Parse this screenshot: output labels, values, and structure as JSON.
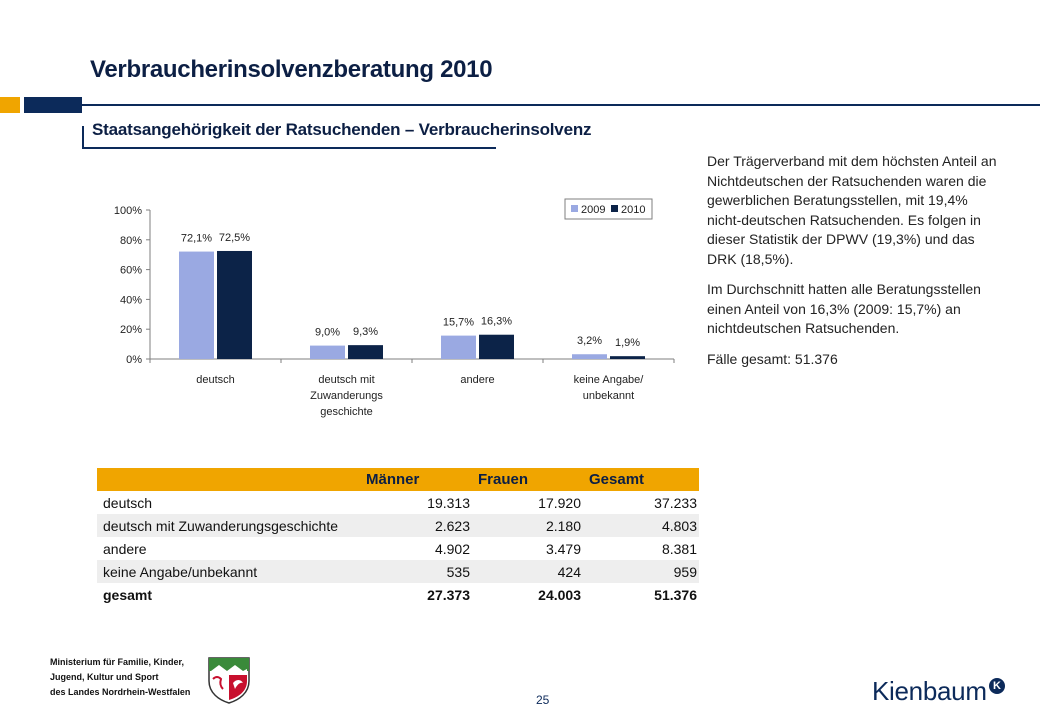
{
  "header": {
    "title": "Verbraucherinsolvenzberatung 2010",
    "subtitle": "Staatsangehörigkeit der Ratsuchenden – Verbraucherinsolvenz"
  },
  "colors": {
    "navy": "#0c2a5a",
    "orange": "#f0a500",
    "series_2009": "#9aa9e2",
    "series_2010": "#0c2348"
  },
  "chart_data": {
    "type": "bar",
    "categories": [
      "deutsch",
      "deutsch mit Zuwanderungs geschichte",
      "andere",
      "keine Angabe/ unbekannt"
    ],
    "category_lines": [
      [
        "deutsch"
      ],
      [
        "deutsch mit",
        "Zuwanderungs",
        "geschichte"
      ],
      [
        "andere"
      ],
      [
        "keine Angabe/",
        "unbekannt"
      ]
    ],
    "series": [
      {
        "name": "2009",
        "values": [
          72.1,
          9.0,
          15.7,
          3.2
        ],
        "labels": [
          "72,1%",
          "9,0%",
          "15,7%",
          "3,2%"
        ]
      },
      {
        "name": "2010",
        "values": [
          72.5,
          9.3,
          16.3,
          1.9
        ],
        "labels": [
          "72,5%",
          "9,3%",
          "16,3%",
          "1,9%"
        ]
      }
    ],
    "ylim": [
      0,
      100
    ],
    "yticks": [
      "0%",
      "20%",
      "40%",
      "60%",
      "80%",
      "100%"
    ],
    "legend": "top-right",
    "grid": false
  },
  "text": {
    "paragraph1": "Der Trägerverband mit dem höchsten Anteil an Nichtdeutschen der Ratsuchenden waren die gewerblichen Beratungsstellen, mit 19,4% nicht-deutschen Ratsuchenden. Es folgen in dieser Statistik der DPWV (19,3%) und das DRK (18,5%).",
    "paragraph2": "Im Durchschnitt hatten alle Beratungsstellen einen Anteil von 16,3% (2009: 15,7%) an nichtdeutschen Ratsuchenden.",
    "total_cases": "Fälle gesamt:  51.376"
  },
  "table": {
    "headers": [
      "",
      "Männer",
      "Frauen",
      "Gesamt"
    ],
    "rows": [
      {
        "label": "deutsch",
        "m": "19.313",
        "f": "17.920",
        "g": "37.233"
      },
      {
        "label": "deutsch mit Zuwanderungsgeschichte",
        "m": "2.623",
        "f": "2.180",
        "g": "4.803"
      },
      {
        "label": "andere",
        "m": "4.902",
        "f": "3.479",
        "g": "8.381"
      },
      {
        "label": "keine Angabe/unbekannt",
        "m": "535",
        "f": "424",
        "g": "959"
      },
      {
        "label": "gesamt",
        "m": "27.373",
        "f": "24.003",
        "g": "51.376"
      }
    ]
  },
  "footer": {
    "ministry_line1": "Ministerium für Familie, Kinder,",
    "ministry_line2": "Jugend, Kultur und Sport",
    "ministry_line3": "des Landes Nordrhein-Westfalen",
    "page_number": "25",
    "brand": "Kienbaum",
    "brand_mark": "K",
    "crest_icon": "nrw-crest-icon"
  }
}
